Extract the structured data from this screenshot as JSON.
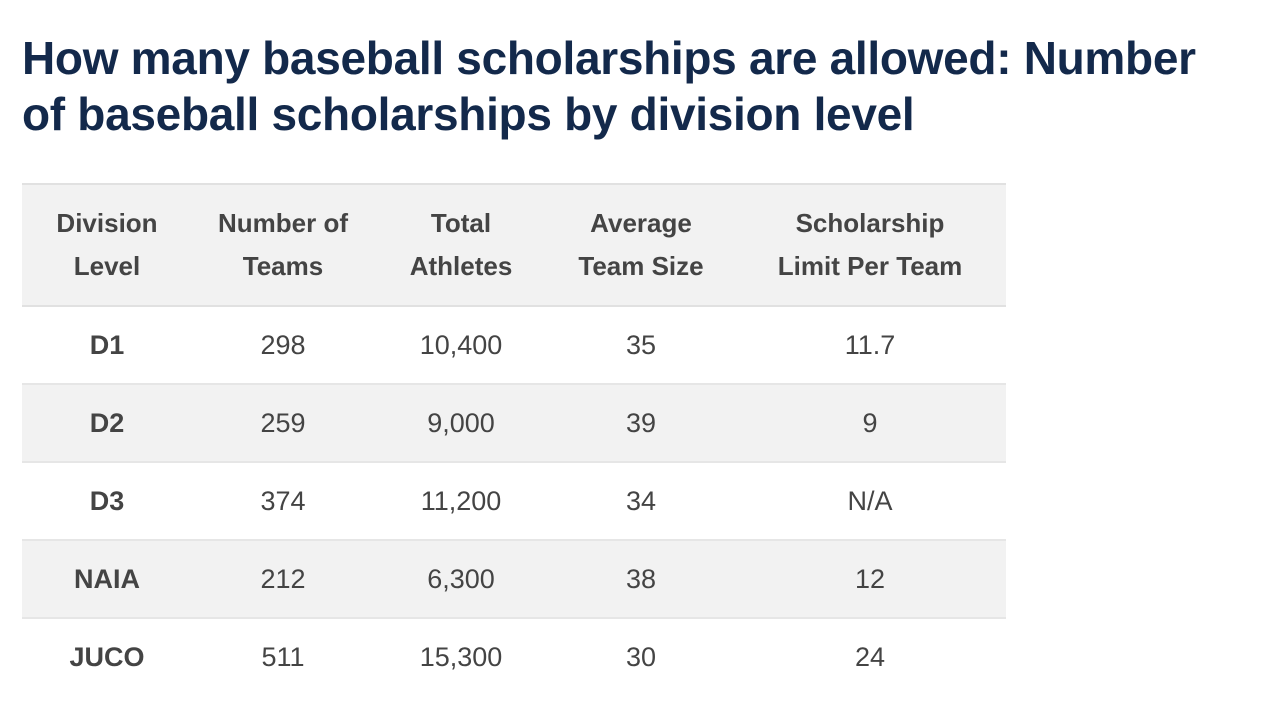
{
  "title": "How many baseball scholarships are allowed: Number of baseball scholarships by division level",
  "table": {
    "headers": [
      [
        "Division",
        "Level"
      ],
      [
        "Number of",
        "Teams"
      ],
      [
        "Total",
        "Athletes"
      ],
      [
        "Average",
        "Team Size"
      ],
      [
        "Scholarship",
        "Limit Per Team"
      ]
    ],
    "rows": [
      [
        "D1",
        "298",
        "10,400",
        "35",
        "11.7"
      ],
      [
        "D2",
        "259",
        "9,000",
        "39",
        "9"
      ],
      [
        "D3",
        "374",
        "11,200",
        "34",
        "N/A"
      ],
      [
        "NAIA",
        "212",
        "6,300",
        "38",
        "12"
      ],
      [
        "JUCO",
        "511",
        "15,300",
        "30",
        "24"
      ]
    ]
  },
  "colors": {
    "title": "#13294b",
    "text": "#444444",
    "stripe": "#f2f2f2",
    "divider": "#e6e6e6"
  }
}
